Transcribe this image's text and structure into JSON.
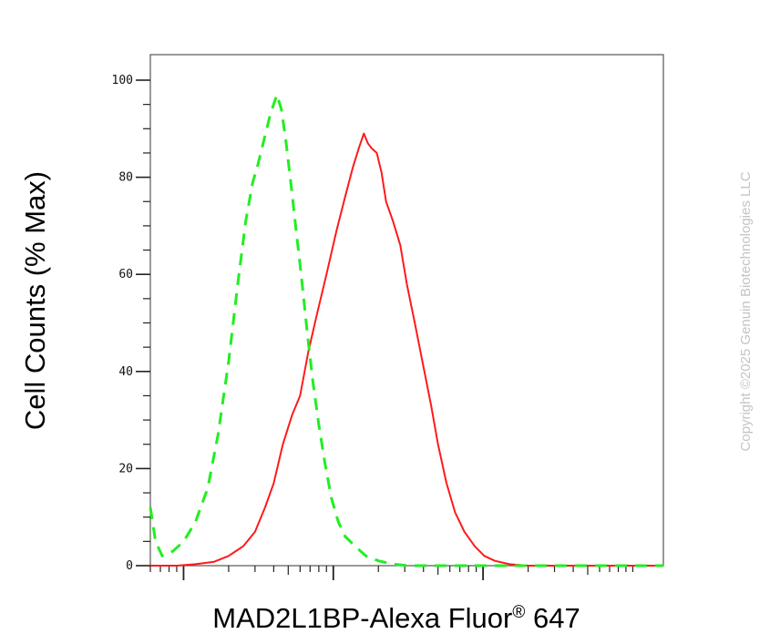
{
  "chart_data": {
    "type": "line",
    "xlabel": "MAD2L1BP-Alexa Fluor",
    "xlabel_sup": "®",
    "xlabel_suffix": " 647",
    "ylabel": "Cell Counts (% Max)",
    "x_scale": "log",
    "xlim": [
      0.6,
      1600
    ],
    "ylim": [
      0,
      100
    ],
    "yticks": [
      0,
      20,
      40,
      60,
      80,
      100
    ],
    "ytick_labels": [
      "0",
      "20",
      "40",
      "60",
      "80",
      "100"
    ],
    "x_major_ticks": [
      1,
      10,
      100
    ],
    "grid": false,
    "series": [
      {
        "color": "#ff1a1a",
        "style": "solid",
        "points": [
          [
            0.6,
            0
          ],
          [
            0.9,
            0
          ],
          [
            1.2,
            0.3
          ],
          [
            1.6,
            0.8
          ],
          [
            2.0,
            2
          ],
          [
            2.5,
            4
          ],
          [
            3.0,
            7
          ],
          [
            3.5,
            12
          ],
          [
            4.0,
            17
          ],
          [
            4.6,
            25
          ],
          [
            5.3,
            31
          ],
          [
            6.0,
            35
          ],
          [
            6.8,
            44
          ],
          [
            7.8,
            52
          ],
          [
            9.0,
            60
          ],
          [
            10.5,
            69
          ],
          [
            12.0,
            76
          ],
          [
            13.5,
            82
          ],
          [
            14.8,
            86
          ],
          [
            16.0,
            89
          ],
          [
            17.0,
            87
          ],
          [
            18.0,
            86
          ],
          [
            19.5,
            85
          ],
          [
            21.0,
            81
          ],
          [
            22.5,
            75
          ],
          [
            25.0,
            71
          ],
          [
            28.0,
            66
          ],
          [
            31.0,
            58
          ],
          [
            35.0,
            50
          ],
          [
            40.0,
            41
          ],
          [
            45.0,
            33
          ],
          [
            50.0,
            25
          ],
          [
            57.0,
            17
          ],
          [
            65.0,
            11
          ],
          [
            75.0,
            7
          ],
          [
            88.0,
            4
          ],
          [
            102.0,
            2
          ],
          [
            120.0,
            1
          ],
          [
            150.0,
            0.3
          ],
          [
            200.0,
            0
          ],
          [
            1600,
            0
          ]
        ]
      },
      {
        "color": "#22ee22",
        "style": "dashed",
        "points": [
          [
            0.6,
            12
          ],
          [
            0.65,
            5
          ],
          [
            0.72,
            2
          ],
          [
            0.85,
            3
          ],
          [
            1.0,
            5
          ],
          [
            1.2,
            9
          ],
          [
            1.45,
            16
          ],
          [
            1.7,
            27
          ],
          [
            2.0,
            42
          ],
          [
            2.3,
            58
          ],
          [
            2.6,
            71
          ],
          [
            2.9,
            79
          ],
          [
            3.1,
            82
          ],
          [
            3.4,
            87
          ],
          [
            3.8,
            93
          ],
          [
            4.2,
            97
          ],
          [
            4.5,
            94
          ],
          [
            4.8,
            88
          ],
          [
            5.2,
            79
          ],
          [
            5.6,
            70
          ],
          [
            6.1,
            60
          ],
          [
            6.7,
            48
          ],
          [
            7.3,
            38
          ],
          [
            8.0,
            29
          ],
          [
            8.8,
            21
          ],
          [
            9.7,
            14
          ],
          [
            10.8,
            9
          ],
          [
            12.0,
            6
          ],
          [
            14.0,
            4
          ],
          [
            16.5,
            2
          ],
          [
            20.0,
            1
          ],
          [
            25.0,
            0.3
          ],
          [
            32.0,
            0
          ],
          [
            1600,
            0
          ]
        ]
      }
    ]
  },
  "watermark": "Copyright ©2025 Genuin Biotechnologies LLC"
}
